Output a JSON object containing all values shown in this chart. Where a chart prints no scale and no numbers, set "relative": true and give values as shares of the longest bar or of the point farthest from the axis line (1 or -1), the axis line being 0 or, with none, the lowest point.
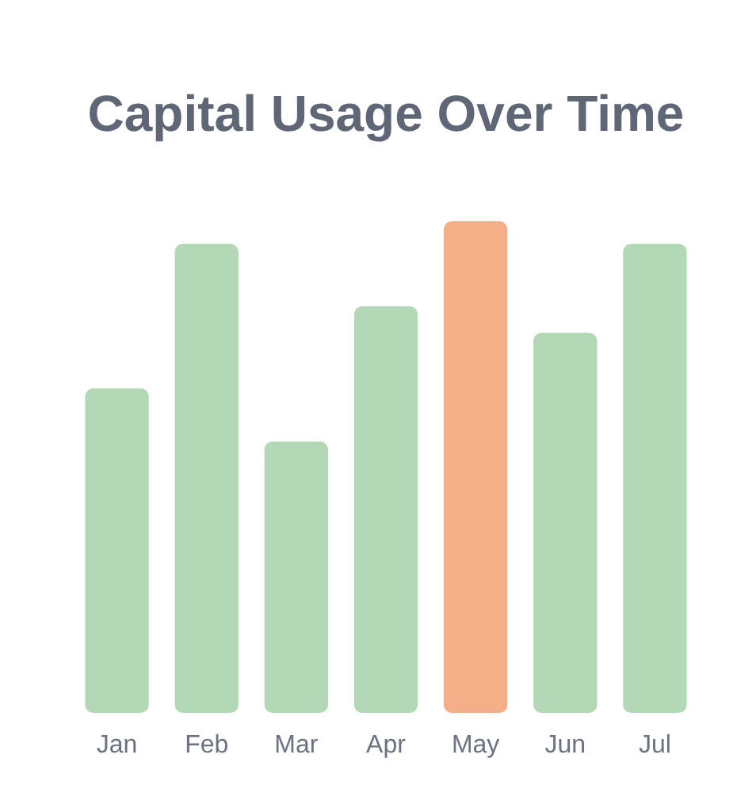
{
  "chart_data": {
    "type": "bar",
    "title": "Capital Usage Over Time",
    "categories": [
      "Jan",
      "Feb",
      "Mar",
      "Apr",
      "May",
      "Jun",
      "Jul"
    ],
    "values": [
      0.66,
      0.954,
      0.552,
      0.827,
      1,
      0.773,
      0.954
    ],
    "colors": [
      "#b3d8b6",
      "#b3d8b6",
      "#b3d8b6",
      "#b3d8b6",
      "#f3ae88",
      "#b3d8b6",
      "#b3d8b6"
    ],
    "relative": true
  }
}
